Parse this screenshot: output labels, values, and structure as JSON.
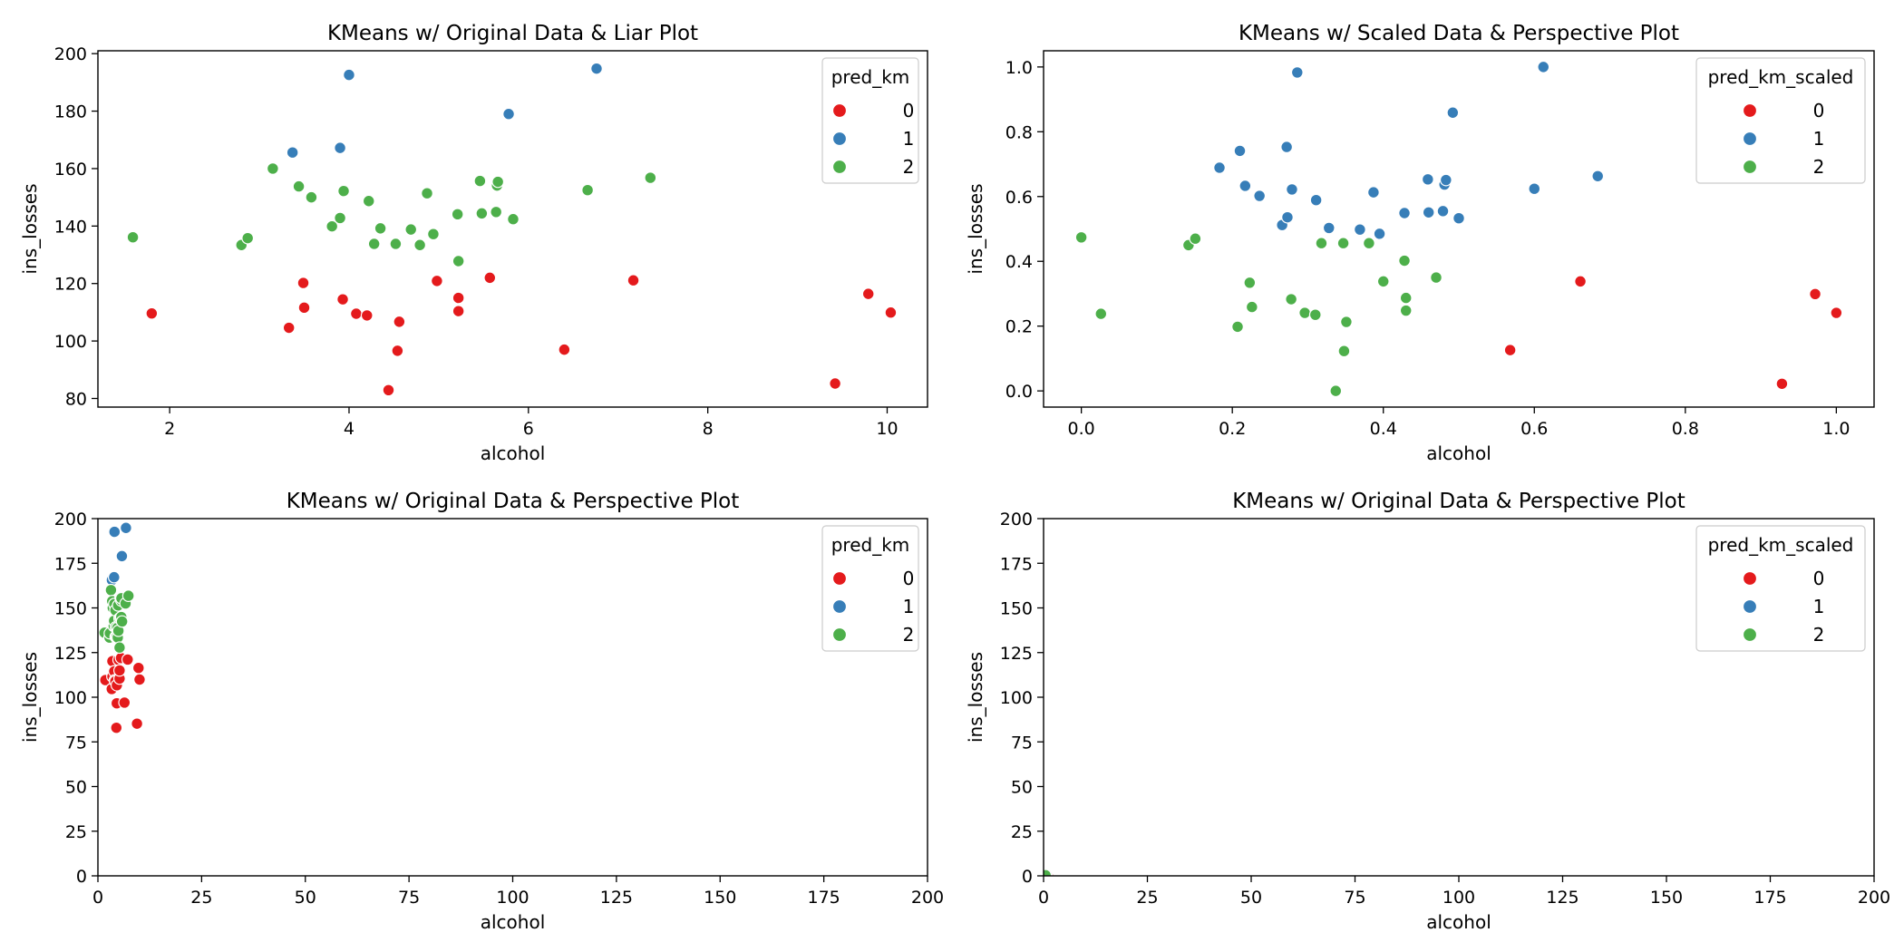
{
  "colors": {
    "0": "#e41a1c",
    "1": "#377eb8",
    "2": "#4daf4a"
  },
  "chart_data": [
    {
      "type": "scatter",
      "title": "KMeans w/ Original Data & Liar Plot",
      "xlabel": "alcohol",
      "ylabel": "ins_losses",
      "xlim": [
        1.2,
        10.45
      ],
      "ylim": [
        77,
        201
      ],
      "xticks": [
        2,
        4,
        6,
        8,
        10
      ],
      "yticks": [
        80,
        100,
        120,
        140,
        160,
        180,
        200
      ],
      "grid": false,
      "legend": {
        "title": "pred_km",
        "labels": [
          "0",
          "1",
          "2"
        ],
        "position": "top-right"
      },
      "series": [
        {
          "name": "0",
          "points": [
            [
              1.8,
              109.6
            ],
            [
              3.33,
              104.6
            ],
            [
              3.49,
              120.2
            ],
            [
              3.5,
              111.6
            ],
            [
              3.93,
              114.5
            ],
            [
              4.08,
              109.5
            ],
            [
              4.2,
              108.9
            ],
            [
              4.44,
              82.9
            ],
            [
              4.54,
              96.6
            ],
            [
              4.56,
              106.7
            ],
            [
              4.98,
              120.9
            ],
            [
              5.22,
              110.4
            ],
            [
              5.22,
              115.0
            ],
            [
              5.57,
              122.0
            ],
            [
              6.4,
              97.0
            ],
            [
              7.17,
              121.1
            ],
            [
              9.42,
              85.2
            ],
            [
              9.79,
              116.4
            ],
            [
              10.04,
              109.9
            ]
          ]
        },
        {
          "name": "1",
          "points": [
            [
              3.37,
              165.6
            ],
            [
              3.9,
              167.2
            ],
            [
              4.0,
              192.6
            ],
            [
              5.78,
              179.0
            ],
            [
              6.76,
              194.8
            ]
          ]
        },
        {
          "name": "2",
          "points": [
            [
              1.59,
              136.1
            ],
            [
              2.8,
              133.4
            ],
            [
              2.87,
              135.8
            ],
            [
              3.15,
              160.0
            ],
            [
              3.44,
              153.8
            ],
            [
              3.58,
              150.0
            ],
            [
              3.81,
              139.9
            ],
            [
              3.9,
              142.8
            ],
            [
              3.94,
              152.2
            ],
            [
              4.22,
              148.7
            ],
            [
              4.28,
              133.8
            ],
            [
              4.35,
              139.2
            ],
            [
              4.52,
              133.8
            ],
            [
              4.69,
              138.8
            ],
            [
              4.79,
              133.4
            ],
            [
              4.87,
              151.4
            ],
            [
              4.94,
              137.2
            ],
            [
              5.21,
              144.1
            ],
            [
              5.22,
              127.8
            ],
            [
              5.46,
              155.7
            ],
            [
              5.48,
              144.4
            ],
            [
              5.64,
              144.9
            ],
            [
              5.65,
              154.1
            ],
            [
              5.66,
              155.4
            ],
            [
              5.83,
              142.4
            ],
            [
              6.66,
              152.5
            ],
            [
              7.36,
              156.8
            ]
          ]
        }
      ]
    },
    {
      "type": "scatter",
      "title": "KMeans w/ Scaled Data & Perspective Plot",
      "xlabel": "alcohol",
      "ylabel": "ins_losses",
      "xlim": [
        -0.05,
        1.05
      ],
      "ylim": [
        -0.05,
        1.05
      ],
      "xticks": [
        0.0,
        0.2,
        0.4,
        0.6,
        0.8,
        1.0
      ],
      "yticks": [
        0.0,
        0.2,
        0.4,
        0.6,
        0.8,
        1.0
      ],
      "tick_decimals": 1,
      "grid": false,
      "legend": {
        "title": "pred_km_scaled",
        "labels": [
          "0",
          "1",
          "2"
        ],
        "position": "top-right"
      },
      "series": [
        {
          "name": "0",
          "points": [
            [
              0.568,
              0.126
            ],
            [
              0.661,
              0.338
            ],
            [
              0.928,
              0.022
            ],
            [
              0.972,
              0.299
            ],
            [
              1.0,
              0.241
            ]
          ]
        },
        {
          "name": "1",
          "points": [
            [
              0.183,
              0.689
            ],
            [
              0.21,
              0.741
            ],
            [
              0.217,
              0.633
            ],
            [
              0.236,
              0.602
            ],
            [
              0.266,
              0.512
            ],
            [
              0.272,
              0.753
            ],
            [
              0.273,
              0.536
            ],
            [
              0.279,
              0.622
            ],
            [
              0.286,
              0.983
            ],
            [
              0.311,
              0.589
            ],
            [
              0.328,
              0.503
            ],
            [
              0.369,
              0.498
            ],
            [
              0.387,
              0.613
            ],
            [
              0.395,
              0.485
            ],
            [
              0.428,
              0.549
            ],
            [
              0.459,
              0.653
            ],
            [
              0.46,
              0.551
            ],
            [
              0.479,
              0.555
            ],
            [
              0.481,
              0.637
            ],
            [
              0.483,
              0.651
            ],
            [
              0.492,
              0.859
            ],
            [
              0.5,
              0.533
            ],
            [
              0.6,
              0.624
            ],
            [
              0.612,
              1.0
            ],
            [
              0.684,
              0.663
            ]
          ]
        },
        {
          "name": "2",
          "points": [
            [
              0.0,
              0.474
            ],
            [
              0.026,
              0.238
            ],
            [
              0.142,
              0.45
            ],
            [
              0.151,
              0.47
            ],
            [
              0.207,
              0.198
            ],
            [
              0.223,
              0.334
            ],
            [
              0.226,
              0.259
            ],
            [
              0.278,
              0.283
            ],
            [
              0.296,
              0.241
            ],
            [
              0.31,
              0.235
            ],
            [
              0.318,
              0.456
            ],
            [
              0.337,
              0.0
            ],
            [
              0.347,
              0.456
            ],
            [
              0.348,
              0.123
            ],
            [
              0.351,
              0.213
            ],
            [
              0.381,
              0.456
            ],
            [
              0.4,
              0.338
            ],
            [
              0.428,
              0.402
            ],
            [
              0.43,
              0.287
            ],
            [
              0.43,
              0.248
            ],
            [
              0.47,
              0.35
            ]
          ]
        }
      ]
    },
    {
      "type": "scatter",
      "title": "KMeans w/ Original Data & Perspective Plot",
      "xlabel": "alcohol",
      "ylabel": "ins_losses",
      "xlim": [
        0,
        200
      ],
      "ylim": [
        0,
        200
      ],
      "xticks": [
        0,
        25,
        50,
        75,
        100,
        125,
        150,
        175,
        200
      ],
      "yticks": [
        0,
        25,
        50,
        75,
        100,
        125,
        150,
        175,
        200
      ],
      "grid": false,
      "legend": {
        "title": "pred_km",
        "labels": [
          "0",
          "1",
          "2"
        ],
        "position": "top-right"
      },
      "series": [
        {
          "name": "0",
          "points": [
            [
              1.8,
              109.6
            ],
            [
              3.33,
              104.6
            ],
            [
              3.49,
              120.2
            ],
            [
              3.5,
              111.6
            ],
            [
              3.93,
              114.5
            ],
            [
              4.08,
              109.5
            ],
            [
              4.2,
              108.9
            ],
            [
              4.44,
              82.9
            ],
            [
              4.54,
              96.6
            ],
            [
              4.56,
              106.7
            ],
            [
              4.98,
              120.9
            ],
            [
              5.22,
              110.4
            ],
            [
              5.22,
              115.0
            ],
            [
              5.57,
              122.0
            ],
            [
              6.4,
              97.0
            ],
            [
              7.17,
              121.1
            ],
            [
              9.42,
              85.2
            ],
            [
              9.79,
              116.4
            ],
            [
              10.04,
              109.9
            ]
          ]
        },
        {
          "name": "1",
          "points": [
            [
              3.37,
              165.6
            ],
            [
              3.9,
              167.2
            ],
            [
              4.0,
              192.6
            ],
            [
              5.78,
              179.0
            ],
            [
              6.76,
              194.8
            ]
          ]
        },
        {
          "name": "2",
          "points": [
            [
              1.59,
              136.1
            ],
            [
              2.8,
              133.4
            ],
            [
              2.87,
              135.8
            ],
            [
              3.15,
              160.0
            ],
            [
              3.44,
              153.8
            ],
            [
              3.58,
              150.0
            ],
            [
              3.81,
              139.9
            ],
            [
              3.9,
              142.8
            ],
            [
              3.94,
              152.2
            ],
            [
              4.22,
              148.7
            ],
            [
              4.28,
              133.8
            ],
            [
              4.35,
              139.2
            ],
            [
              4.52,
              133.8
            ],
            [
              4.69,
              138.8
            ],
            [
              4.79,
              133.4
            ],
            [
              4.87,
              151.4
            ],
            [
              4.94,
              137.2
            ],
            [
              5.21,
              144.1
            ],
            [
              5.22,
              127.8
            ],
            [
              5.46,
              155.7
            ],
            [
              5.48,
              144.4
            ],
            [
              5.64,
              144.9
            ],
            [
              5.65,
              154.1
            ],
            [
              5.66,
              155.4
            ],
            [
              5.83,
              142.4
            ],
            [
              6.66,
              152.5
            ],
            [
              7.36,
              156.8
            ]
          ]
        }
      ]
    },
    {
      "type": "scatter",
      "title": "KMeans w/ Original Data & Perspective Plot",
      "xlabel": "alcohol",
      "ylabel": "ins_losses",
      "xlim": [
        0,
        200
      ],
      "ylim": [
        0,
        200
      ],
      "xticks": [
        0,
        25,
        50,
        75,
        100,
        125,
        150,
        175,
        200
      ],
      "yticks": [
        0,
        25,
        50,
        75,
        100,
        125,
        150,
        175,
        200
      ],
      "grid": false,
      "legend": {
        "title": "pred_km_scaled",
        "labels": [
          "0",
          "1",
          "2"
        ],
        "position": "top-right"
      },
      "series": [
        {
          "name": "0",
          "points": [
            [
              0.568,
              0.126
            ],
            [
              0.661,
              0.338
            ],
            [
              0.928,
              0.022
            ],
            [
              0.972,
              0.299
            ],
            [
              1.0,
              0.241
            ]
          ]
        },
        {
          "name": "1",
          "points": [
            [
              0.183,
              0.689
            ],
            [
              0.21,
              0.741
            ],
            [
              0.217,
              0.633
            ],
            [
              0.236,
              0.602
            ],
            [
              0.266,
              0.512
            ],
            [
              0.272,
              0.753
            ],
            [
              0.273,
              0.536
            ],
            [
              0.279,
              0.622
            ],
            [
              0.286,
              0.983
            ],
            [
              0.311,
              0.589
            ],
            [
              0.328,
              0.503
            ],
            [
              0.369,
              0.498
            ],
            [
              0.387,
              0.613
            ],
            [
              0.395,
              0.485
            ],
            [
              0.428,
              0.549
            ],
            [
              0.459,
              0.653
            ],
            [
              0.46,
              0.551
            ],
            [
              0.479,
              0.555
            ],
            [
              0.481,
              0.637
            ],
            [
              0.483,
              0.651
            ],
            [
              0.492,
              0.859
            ],
            [
              0.5,
              0.533
            ],
            [
              0.6,
              0.624
            ],
            [
              0.612,
              1.0
            ],
            [
              0.684,
              0.663
            ]
          ]
        },
        {
          "name": "2",
          "points": [
            [
              0.0,
              0.474
            ],
            [
              0.026,
              0.238
            ],
            [
              0.142,
              0.45
            ],
            [
              0.151,
              0.47
            ],
            [
              0.207,
              0.198
            ],
            [
              0.223,
              0.334
            ],
            [
              0.226,
              0.259
            ],
            [
              0.278,
              0.283
            ],
            [
              0.296,
              0.241
            ],
            [
              0.31,
              0.235
            ],
            [
              0.318,
              0.456
            ],
            [
              0.337,
              0.0
            ],
            [
              0.347,
              0.456
            ],
            [
              0.348,
              0.123
            ],
            [
              0.351,
              0.213
            ],
            [
              0.381,
              0.456
            ],
            [
              0.4,
              0.338
            ],
            [
              0.428,
              0.402
            ],
            [
              0.43,
              0.287
            ],
            [
              0.43,
              0.248
            ],
            [
              0.47,
              0.35
            ]
          ]
        }
      ]
    }
  ]
}
